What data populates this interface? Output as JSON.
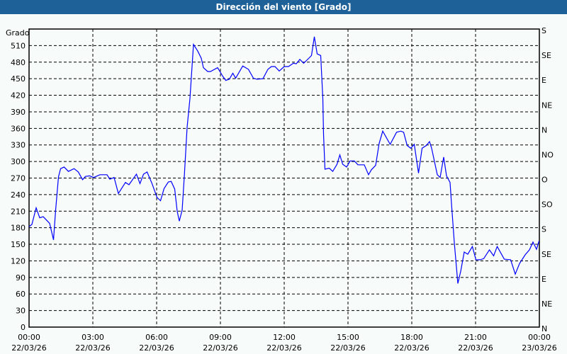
{
  "chart_data": {
    "type": "line",
    "title": "Dirección del viento [Grado]",
    "ylabel": "Grado",
    "ylim": [
      0,
      540
    ],
    "yticks": [
      0,
      30,
      60,
      90,
      120,
      150,
      180,
      210,
      240,
      270,
      300,
      330,
      360,
      390,
      420,
      450,
      480,
      510
    ],
    "right_ticks": [
      {
        "value": 540,
        "label": "S"
      },
      {
        "value": 495,
        "label": "SE"
      },
      {
        "value": 450,
        "label": "E"
      },
      {
        "value": 405,
        "label": "NE"
      },
      {
        "value": 360,
        "label": "N"
      },
      {
        "value": 315,
        "label": "NO"
      },
      {
        "value": 270,
        "label": "O"
      },
      {
        "value": 225,
        "label": "SO"
      },
      {
        "value": 180,
        "label": "S"
      },
      {
        "value": 135,
        "label": "SE"
      },
      {
        "value": 90,
        "label": "E"
      },
      {
        "value": 45,
        "label": "NE"
      },
      {
        "value": 0,
        "label": "N"
      }
    ],
    "xlim": [
      "22/03/26 00:00",
      "23/03/26 00:00"
    ],
    "xticks": [
      {
        "time": "00:00",
        "date": "22/03/26"
      },
      {
        "time": "03:00",
        "date": "22/03/26"
      },
      {
        "time": "06:00",
        "date": "22/03/26"
      },
      {
        "time": "09:00",
        "date": "22/03/26"
      },
      {
        "time": "12:00",
        "date": "22/03/26"
      },
      {
        "time": "15:00",
        "date": "22/03/26"
      },
      {
        "time": "18:00",
        "date": "22/03/26"
      },
      {
        "time": "21:00",
        "date": "22/03/26"
      },
      {
        "time": "00:00",
        "date": "23/03/26"
      }
    ],
    "grid": true,
    "line_color": "#0000ff",
    "points": [
      [
        "00:00",
        182
      ],
      [
        "00:08",
        186
      ],
      [
        "00:20",
        216
      ],
      [
        "00:30",
        198
      ],
      [
        "00:40",
        200
      ],
      [
        "00:58",
        188
      ],
      [
        "01:09",
        158
      ],
      [
        "01:15",
        212
      ],
      [
        "01:23",
        272
      ],
      [
        "01:29",
        287
      ],
      [
        "01:39",
        290
      ],
      [
        "01:51",
        282
      ],
      [
        "02:07",
        287
      ],
      [
        "02:19",
        281
      ],
      [
        "02:31",
        267
      ],
      [
        "02:39",
        273
      ],
      [
        "02:51",
        274
      ],
      [
        "03:02",
        271
      ],
      [
        "03:20",
        276
      ],
      [
        "03:40",
        276
      ],
      [
        "03:48",
        268
      ],
      [
        "04:00",
        271
      ],
      [
        "04:12",
        242
      ],
      [
        "04:32",
        262
      ],
      [
        "04:42",
        258
      ],
      [
        "04:54",
        269
      ],
      [
        "05:03",
        277
      ],
      [
        "05:13",
        260
      ],
      [
        "05:23",
        277
      ],
      [
        "05:33",
        281
      ],
      [
        "05:47",
        260
      ],
      [
        "06:01",
        235
      ],
      [
        "06:11",
        229
      ],
      [
        "06:21",
        251
      ],
      [
        "06:33",
        263
      ],
      [
        "06:41",
        264
      ],
      [
        "06:51",
        250
      ],
      [
        "06:58",
        210
      ],
      [
        "07:04",
        192
      ],
      [
        "07:12",
        212
      ],
      [
        "07:18",
        272
      ],
      [
        "07:26",
        362
      ],
      [
        "07:34",
        414
      ],
      [
        "07:44",
        512
      ],
      [
        "07:56",
        500
      ],
      [
        "08:06",
        487
      ],
      [
        "08:12",
        470
      ],
      [
        "08:24",
        463
      ],
      [
        "08:32",
        463
      ],
      [
        "08:52",
        470
      ],
      [
        "09:07",
        454
      ],
      [
        "09:15",
        447
      ],
      [
        "09:25",
        449
      ],
      [
        "09:35",
        460
      ],
      [
        "09:43",
        451
      ],
      [
        "10:03",
        473
      ],
      [
        "10:19",
        467
      ],
      [
        "10:33",
        451
      ],
      [
        "10:43",
        449
      ],
      [
        "11:00",
        450
      ],
      [
        "11:14",
        467
      ],
      [
        "11:24",
        472
      ],
      [
        "11:34",
        472
      ],
      [
        "11:46",
        464
      ],
      [
        "12:00",
        472
      ],
      [
        "12:12",
        472
      ],
      [
        "12:26",
        478
      ],
      [
        "12:34",
        477
      ],
      [
        "12:44",
        485
      ],
      [
        "12:55",
        478
      ],
      [
        "13:11",
        488
      ],
      [
        "13:17",
        492
      ],
      [
        "13:25",
        526
      ],
      [
        "13:33",
        495
      ],
      [
        "13:43",
        492
      ],
      [
        "13:49",
        414
      ],
      [
        "13:51",
        349
      ],
      [
        "13:55",
        286
      ],
      [
        "14:07",
        288
      ],
      [
        "14:17",
        282
      ],
      [
        "14:29",
        295
      ],
      [
        "14:37",
        312
      ],
      [
        "14:45",
        295
      ],
      [
        "14:56",
        290
      ],
      [
        "15:06",
        301
      ],
      [
        "15:18",
        301
      ],
      [
        "15:28",
        294
      ],
      [
        "15:46",
        294
      ],
      [
        "15:58",
        276
      ],
      [
        "16:06",
        285
      ],
      [
        "16:18",
        293
      ],
      [
        "16:28",
        333
      ],
      [
        "16:38",
        355
      ],
      [
        "16:59",
        331
      ],
      [
        "17:17",
        353
      ],
      [
        "17:29",
        355
      ],
      [
        "17:37",
        353
      ],
      [
        "17:47",
        329
      ],
      [
        "17:57",
        324
      ],
      [
        "18:07",
        331
      ],
      [
        "18:19",
        279
      ],
      [
        "18:29",
        324
      ],
      [
        "18:41",
        329
      ],
      [
        "18:50",
        336
      ],
      [
        "18:56",
        324
      ],
      [
        "19:04",
        300
      ],
      [
        "19:12",
        276
      ],
      [
        "19:20",
        271
      ],
      [
        "19:30",
        308
      ],
      [
        "19:38",
        274
      ],
      [
        "19:48",
        262
      ],
      [
        "19:52",
        224
      ],
      [
        "20:00",
        153
      ],
      [
        "20:10",
        79
      ],
      [
        "20:18",
        101
      ],
      [
        "20:28",
        136
      ],
      [
        "20:38",
        132
      ],
      [
        "20:51",
        146
      ],
      [
        "21:01",
        122
      ],
      [
        "21:13",
        122
      ],
      [
        "21:23",
        124
      ],
      [
        "21:39",
        140
      ],
      [
        "21:51",
        129
      ],
      [
        "22:01",
        146
      ],
      [
        "22:21",
        123
      ],
      [
        "22:39",
        122
      ],
      [
        "22:52",
        96
      ],
      [
        "23:04",
        115
      ],
      [
        "23:20",
        131
      ],
      [
        "23:32",
        140
      ],
      [
        "23:42",
        154
      ],
      [
        "23:52",
        141
      ],
      [
        "23:59",
        156
      ]
    ]
  }
}
